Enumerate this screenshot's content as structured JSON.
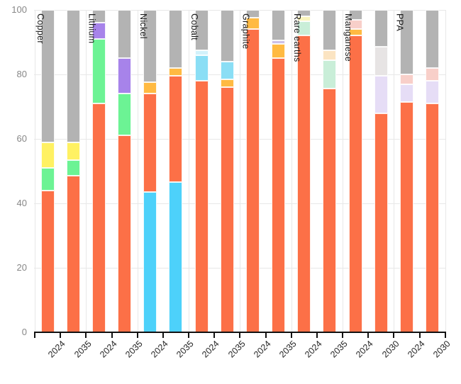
{
  "chart_data": {
    "type": "bar",
    "stacked": true,
    "orientation": "vertical",
    "title": "",
    "xlabel": "",
    "ylabel": "",
    "ylim": [
      0,
      100
    ],
    "yticks": [
      0,
      20,
      40,
      60,
      80,
      100
    ],
    "grid": true,
    "legend_position": "none",
    "colors": {
      "tomato": "#FC7047",
      "gray": "#B3B3B3",
      "yellow": "#FFF162",
      "green": "#6CF394",
      "purple": "#A783EA",
      "cyan": "#4DD1FA",
      "lightblue": "#8ADEF5",
      "palecyan": "#D2F2FB",
      "amber": "#FFBA42",
      "mint": "#C9EED8",
      "paleyellow": "#FAF5BE",
      "cream": "#FBE4C2",
      "pink": "#F8CFC9",
      "lightgray": "#E7E4E4",
      "lavender": "#E6DDF6",
      "lightpurple": "#CCC0E8"
    },
    "groups": [
      {
        "label": "Copper",
        "bars": [
          {
            "x": "2024",
            "segments": [
              [
                "tomato",
                44
              ],
              [
                "green",
                7
              ],
              [
                "yellow",
                8
              ],
              [
                "gray",
                41
              ]
            ]
          },
          {
            "x": "2035",
            "segments": [
              [
                "tomato",
                48.5
              ],
              [
                "green",
                5
              ],
              [
                "yellow",
                5.5
              ],
              [
                "gray",
                41
              ]
            ]
          }
        ]
      },
      {
        "label": "Lithium",
        "bars": [
          {
            "x": "2024",
            "segments": [
              [
                "tomato",
                71
              ],
              [
                "green",
                20
              ],
              [
                "purple",
                5
              ],
              [
                "gray",
                4
              ]
            ]
          },
          {
            "x": "2035",
            "segments": [
              [
                "tomato",
                61
              ],
              [
                "green",
                13
              ],
              [
                "purple",
                11
              ],
              [
                "gray",
                15
              ]
            ]
          }
        ]
      },
      {
        "label": "Nickel",
        "bars": [
          {
            "x": "2024",
            "segments": [
              [
                "cyan",
                43.5
              ],
              [
                "tomato",
                30.5
              ],
              [
                "amber",
                3.5
              ],
              [
                "gray",
                22.5
              ]
            ]
          },
          {
            "x": "2035",
            "segments": [
              [
                "cyan",
                46.5
              ],
              [
                "tomato",
                33
              ],
              [
                "amber",
                2.5
              ],
              [
                "gray",
                18
              ]
            ]
          }
        ]
      },
      {
        "label": "Cobalt",
        "bars": [
          {
            "x": "2024",
            "segments": [
              [
                "tomato",
                78
              ],
              [
                "lightblue",
                8
              ],
              [
                "palecyan",
                1.5
              ],
              [
                "gray",
                12.5
              ]
            ]
          },
          {
            "x": "2035",
            "segments": [
              [
                "tomato",
                76
              ],
              [
                "amber",
                2.5
              ],
              [
                "lightblue",
                5.5
              ],
              [
                "gray",
                16
              ]
            ]
          }
        ]
      },
      {
        "label": "Graphite",
        "bars": [
          {
            "x": "2024",
            "segments": [
              [
                "tomato",
                94
              ],
              [
                "amber",
                3.5
              ],
              [
                "gray",
                2.5
              ]
            ]
          },
          {
            "x": "2035",
            "segments": [
              [
                "tomato",
                85
              ],
              [
                "amber",
                4.5
              ],
              [
                "lightpurple",
                1
              ],
              [
                "gray",
                9.5
              ]
            ]
          }
        ]
      },
      {
        "label": "Rare earths",
        "bars": [
          {
            "x": "2024",
            "segments": [
              [
                "tomato",
                92
              ],
              [
                "mint",
                4.5
              ],
              [
                "paleyellow",
                1.5
              ],
              [
                "gray",
                2
              ]
            ]
          },
          {
            "x": "2035",
            "segments": [
              [
                "tomato",
                75.5
              ],
              [
                "mint",
                9
              ],
              [
                "cream",
                3
              ],
              [
                "gray",
                12.5
              ]
            ]
          }
        ]
      },
      {
        "label": "Manganese",
        "bars": [
          {
            "x": "2024",
            "segments": [
              [
                "tomato",
                92
              ],
              [
                "amber",
                2
              ],
              [
                "pink",
                3
              ],
              [
                "gray",
                3
              ]
            ]
          },
          {
            "x": "2030",
            "segments": [
              [
                "tomato",
                68
              ],
              [
                "lavender",
                11.5
              ],
              [
                "lightgray",
                9
              ],
              [
                "gray",
                11.5
              ]
            ]
          }
        ]
      },
      {
        "label": "PPA",
        "bars": [
          {
            "x": "2024",
            "segments": [
              [
                "tomato",
                71.5
              ],
              [
                "lavender",
                5.5
              ],
              [
                "pink",
                3
              ],
              [
                "gray",
                20
              ]
            ]
          },
          {
            "x": "2030",
            "segments": [
              [
                "tomato",
                71
              ],
              [
                "lavender",
                7
              ],
              [
                "pink",
                4
              ],
              [
                "gray",
                18
              ]
            ]
          }
        ]
      }
    ]
  }
}
